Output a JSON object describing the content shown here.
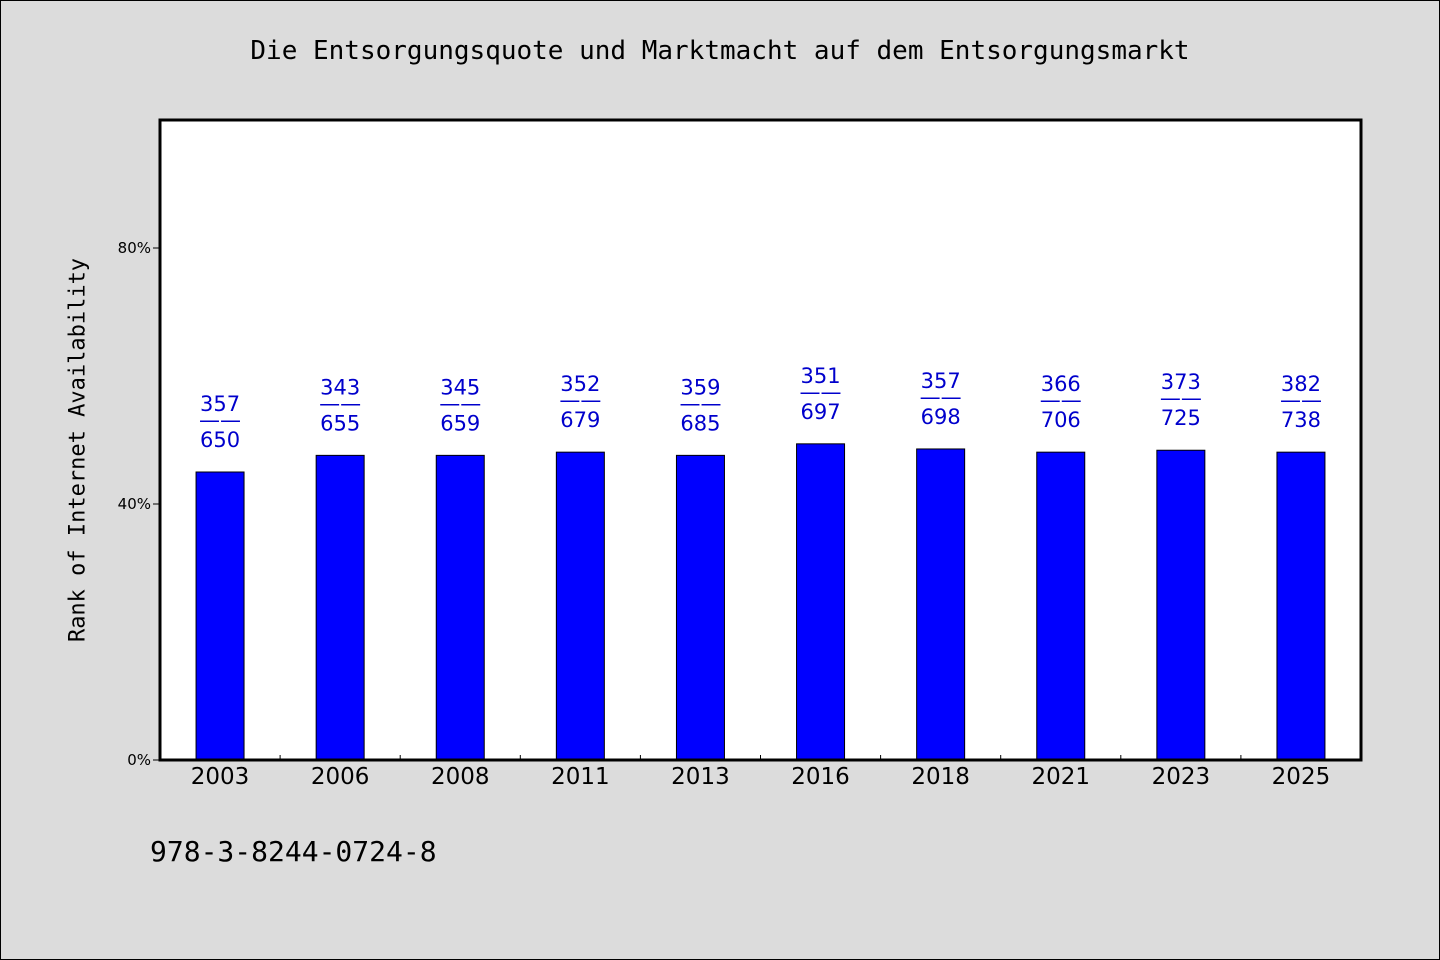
{
  "chart_data": {
    "type": "bar",
    "title": "Die Entsorgungsquote und Marktmacht auf dem Entsorgungsmarkt",
    "xlabel": "",
    "ylabel": "Rank of Internet Availability",
    "ylim": [
      0,
      100
    ],
    "y_ticks": [
      "0%",
      "40%",
      "80%"
    ],
    "y_tick_values": [
      0,
      40,
      80
    ],
    "categories": [
      "2003",
      "2006",
      "2008",
      "2011",
      "2013",
      "2016",
      "2018",
      "2021",
      "2023",
      "2025"
    ],
    "values": [
      45,
      47.6,
      47.6,
      48.1,
      47.6,
      49.4,
      48.6,
      48.1,
      48.4,
      48.1
    ],
    "labels_top": [
      "357",
      "343",
      "345",
      "352",
      "359",
      "351",
      "357",
      "366",
      "373",
      "382"
    ],
    "labels_sep": "——",
    "labels_bottom": [
      "650",
      "655",
      "659",
      "679",
      "685",
      "697",
      "698",
      "706",
      "725",
      "738"
    ],
    "bar_color": "#0000ff",
    "label_color": "#0000cc",
    "plot_background": "#ffffff",
    "page_background": "#dcdcdc",
    "grid": false,
    "legend": "none"
  },
  "footer": {
    "identifier": "978-3-8244-0724-8"
  }
}
